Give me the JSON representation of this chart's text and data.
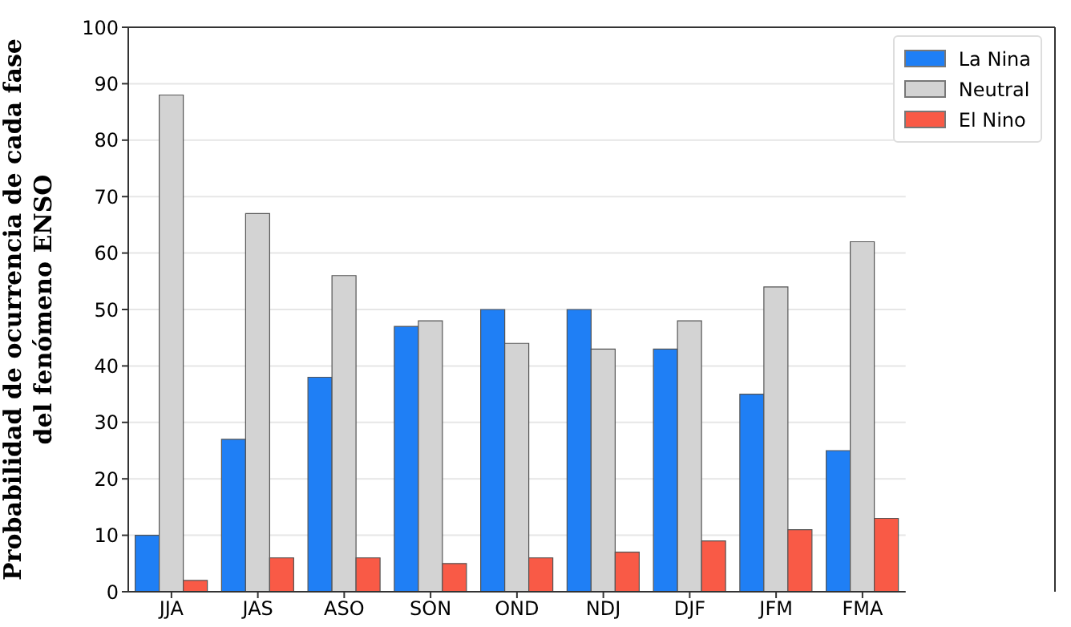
{
  "chart_data": {
    "type": "bar",
    "ylabel": "Probabilidad de ocurrencia  de cada fase\ndel fenómeno ENSO",
    "categories": [
      "JJA",
      "JAS",
      "ASO",
      "SON",
      "OND",
      "NDJ",
      "DJF",
      "JFM",
      "FMA"
    ],
    "series": [
      {
        "name": "La Nina",
        "color": "#1f7ff5",
        "values": [
          10,
          27,
          38,
          47,
          50,
          50,
          43,
          35,
          25
        ]
      },
      {
        "name": "Neutral",
        "color": "#d3d3d3",
        "values": [
          88,
          67,
          56,
          48,
          44,
          43,
          48,
          54,
          62
        ]
      },
      {
        "name": "El Nino",
        "color": "#f95a46",
        "values": [
          2,
          6,
          6,
          5,
          6,
          7,
          9,
          11,
          13
        ]
      }
    ],
    "ylim": [
      0,
      100
    ],
    "yticks": [
      0,
      10,
      20,
      30,
      40,
      50,
      60,
      70,
      80,
      90,
      100
    ],
    "grid": "y",
    "legend": "top right"
  }
}
